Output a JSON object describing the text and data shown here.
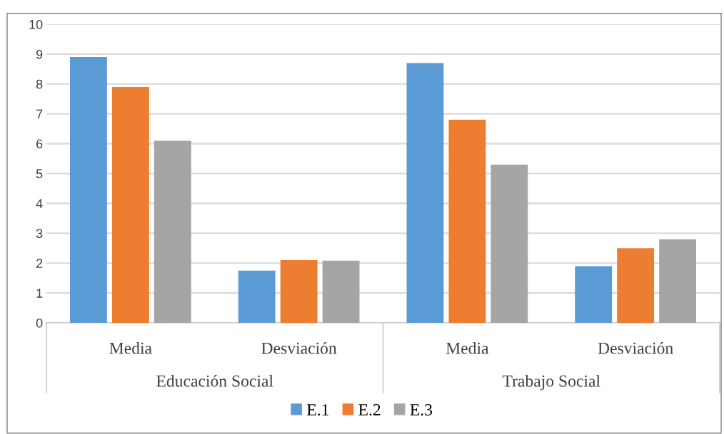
{
  "chart_data": {
    "type": "bar",
    "categories": [
      "Media",
      "Desviación",
      "Media",
      "Desviación"
    ],
    "series": [
      {
        "name": "E.1",
        "color": "#5b9bd5",
        "values": [
          8.9,
          1.75,
          8.7,
          1.9
        ]
      },
      {
        "name": "E.2",
        "color": "#ed7d31",
        "values": [
          7.9,
          2.1,
          6.8,
          2.5
        ]
      },
      {
        "name": "E.3",
        "color": "#a5a5a5",
        "values": [
          6.1,
          2.08,
          5.3,
          2.8
        ]
      }
    ],
    "annotations": [
      "Educación Social",
      "Trabajo Social"
    ],
    "ylim": [
      0,
      10
    ],
    "yticks": [
      0,
      1,
      2,
      3,
      4,
      5,
      6,
      7,
      8,
      9,
      10
    ],
    "grid": "y",
    "legend": "bottom"
  }
}
